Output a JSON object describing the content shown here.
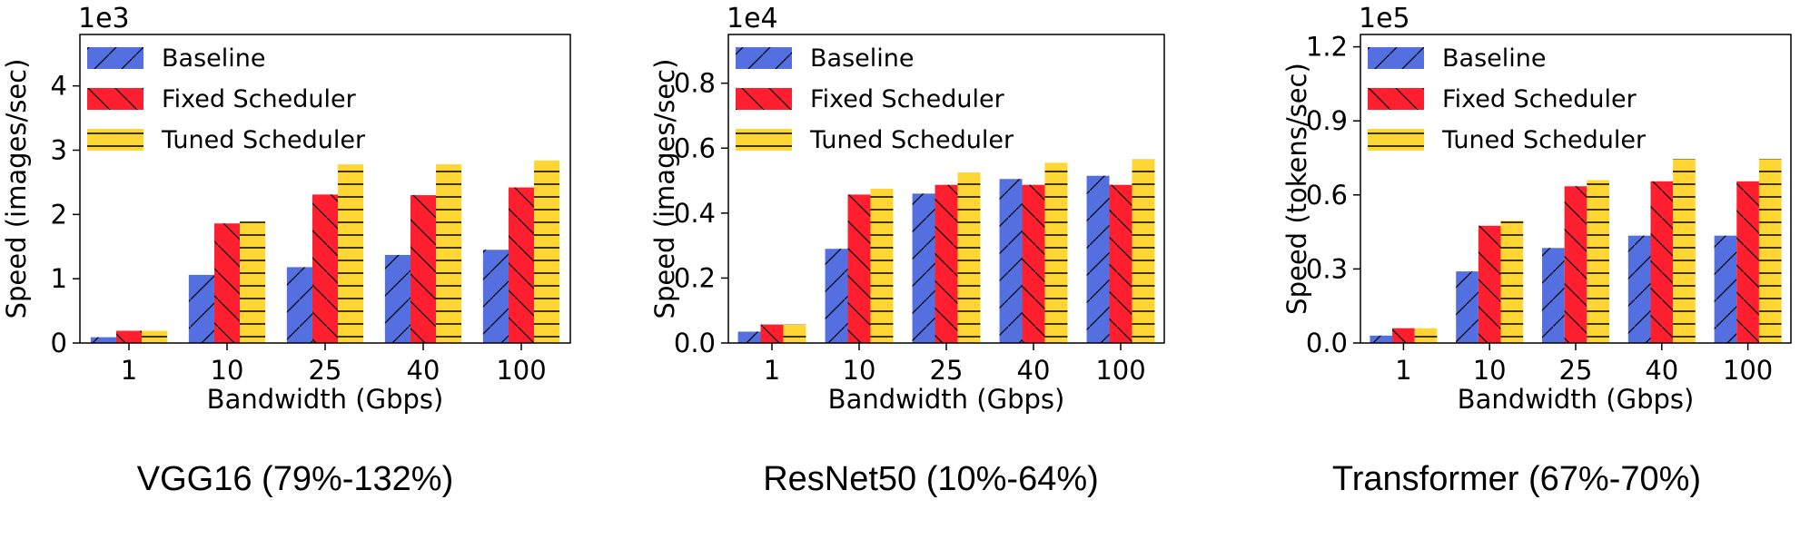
{
  "colors": {
    "series": [
      "#5470e0",
      "#ff1f2f",
      "#ffd633"
    ],
    "edge": "#000000",
    "hatch": "#000000"
  },
  "chart_data": [
    {
      "type": "bar",
      "categories": [
        "1",
        "10",
        "25",
        "40",
        "100"
      ],
      "series": [
        {
          "name": "Baseline",
          "values": [
            0.09,
            1.06,
            1.18,
            1.37,
            1.45
          ]
        },
        {
          "name": "Fixed Scheduler",
          "values": [
            0.19,
            1.86,
            2.31,
            2.3,
            2.42
          ]
        },
        {
          "name": "Tuned Scheduler",
          "values": [
            0.19,
            1.89,
            2.78,
            2.78,
            2.84
          ]
        }
      ],
      "xlabel": "Bandwidth (Gbps)",
      "ylabel": "Speed (images/sec)",
      "scale_label": "1e3",
      "ylim": [
        0,
        4.8
      ],
      "yticks": [
        0,
        1,
        2,
        3,
        4
      ],
      "ytick_labels": [
        "0",
        "1",
        "2",
        "3",
        "4"
      ],
      "legend": "top-left",
      "caption": "VGG16 (79%-132%)"
    },
    {
      "type": "bar",
      "categories": [
        "1",
        "10",
        "25",
        "40",
        "100"
      ],
      "series": [
        {
          "name": "Baseline",
          "values": [
            0.035,
            0.29,
            0.46,
            0.505,
            0.515
          ]
        },
        {
          "name": "Fixed Scheduler",
          "values": [
            0.057,
            0.457,
            0.487,
            0.487,
            0.487
          ]
        },
        {
          "name": "Tuned Scheduler",
          "values": [
            0.057,
            0.475,
            0.525,
            0.555,
            0.565
          ]
        }
      ],
      "xlabel": "Bandwidth (Gbps)",
      "ylabel": "Speed (images/sec)",
      "scale_label": "1e4",
      "ylim": [
        0,
        0.95
      ],
      "yticks": [
        0,
        0.2,
        0.4,
        0.6,
        0.8
      ],
      "ytick_labels": [
        "0.0",
        "0.2",
        "0.4",
        "0.6",
        "0.8"
      ],
      "legend": "top-left",
      "caption": "ResNet50 (10%-64%)"
    },
    {
      "type": "bar",
      "categories": [
        "1",
        "10",
        "25",
        "40",
        "100"
      ],
      "series": [
        {
          "name": "Baseline",
          "values": [
            0.03,
            0.29,
            0.385,
            0.435,
            0.435
          ]
        },
        {
          "name": "Fixed Scheduler",
          "values": [
            0.06,
            0.475,
            0.635,
            0.655,
            0.655
          ]
        },
        {
          "name": "Tuned Scheduler",
          "values": [
            0.06,
            0.495,
            0.66,
            0.745,
            0.745
          ]
        }
      ],
      "xlabel": "Bandwidth (Gbps)",
      "ylabel": "Speed (tokens/sec)",
      "scale_label": "1e5",
      "ylim": [
        0,
        1.25
      ],
      "yticks": [
        0,
        0.3,
        0.6,
        0.9,
        1.2
      ],
      "ytick_labels": [
        "0.0",
        "0.3",
        "0.6",
        "0.9",
        "1.2"
      ],
      "legend": "top-left",
      "caption": "Transformer (67%-70%)"
    }
  ]
}
